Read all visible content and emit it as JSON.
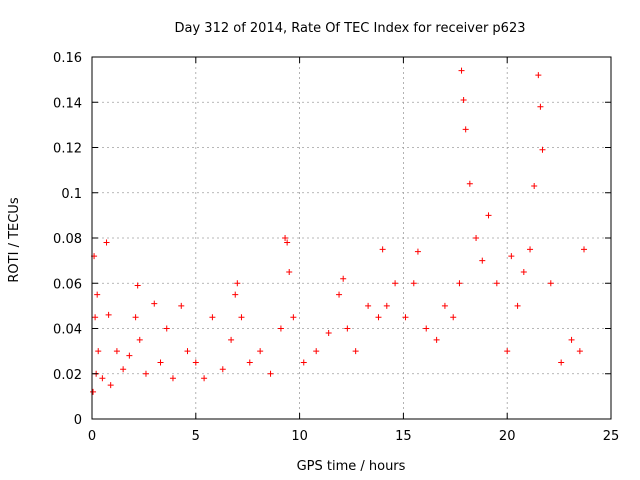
{
  "chart_data": {
    "type": "scatter",
    "title": "Day 312 of 2014, Rate Of TEC Index for receiver p623",
    "xlabel": "GPS time / hours",
    "ylabel": "ROTI / TECUs",
    "xlim": [
      0,
      25
    ],
    "ylim": [
      0,
      0.16
    ],
    "x_ticks": [
      0,
      5,
      10,
      15,
      20,
      25
    ],
    "y_ticks": [
      0,
      0.02,
      0.04,
      0.06,
      0.08,
      0.1,
      0.12,
      0.14,
      0.16
    ],
    "x_tick_labels": [
      "0",
      "5",
      "10",
      "15",
      "20",
      "25"
    ],
    "y_tick_labels": [
      "0",
      "0.02",
      "0.04",
      "0.06",
      "0.08",
      "0.1",
      "0.12",
      "0.14",
      "0.16"
    ],
    "grid": true,
    "marker": "+",
    "color": "#ff0000",
    "series": [
      {
        "name": "ROTI",
        "x": [
          0.05,
          0.1,
          0.15,
          0.2,
          0.25,
          0.3,
          0.5,
          0.7,
          0.8,
          0.9,
          1.2,
          1.5,
          1.8,
          2.1,
          2.2,
          2.3,
          2.6,
          3.0,
          3.3,
          3.6,
          3.9,
          4.3,
          4.6,
          5.0,
          5.4,
          5.8,
          6.3,
          6.7,
          6.9,
          7.0,
          7.2,
          7.6,
          8.1,
          8.6,
          9.1,
          9.3,
          9.4,
          9.5,
          9.7,
          10.2,
          10.8,
          11.4,
          11.9,
          12.1,
          12.3,
          12.7,
          13.3,
          13.8,
          14.0,
          14.2,
          14.6,
          15.1,
          15.5,
          15.7,
          16.1,
          16.6,
          17.0,
          17.4,
          17.7,
          17.8,
          17.9,
          18.0,
          18.2,
          18.5,
          18.8,
          19.1,
          19.5,
          20.0,
          20.2,
          20.5,
          20.8,
          21.1,
          21.3,
          21.5,
          21.6,
          21.7,
          22.1,
          22.6,
          23.1,
          23.5,
          23.7
        ],
        "y": [
          0.012,
          0.072,
          0.045,
          0.02,
          0.055,
          0.03,
          0.018,
          0.078,
          0.046,
          0.015,
          0.03,
          0.022,
          0.028,
          0.045,
          0.059,
          0.035,
          0.02,
          0.051,
          0.025,
          0.04,
          0.018,
          0.05,
          0.03,
          0.025,
          0.018,
          0.045,
          0.022,
          0.035,
          0.055,
          0.06,
          0.045,
          0.025,
          0.03,
          0.02,
          0.04,
          0.08,
          0.078,
          0.065,
          0.045,
          0.025,
          0.03,
          0.038,
          0.055,
          0.062,
          0.04,
          0.03,
          0.05,
          0.045,
          0.075,
          0.05,
          0.06,
          0.045,
          0.06,
          0.074,
          0.04,
          0.035,
          0.05,
          0.045,
          0.06,
          0.154,
          0.141,
          0.128,
          0.104,
          0.08,
          0.07,
          0.09,
          0.06,
          0.03,
          0.072,
          0.05,
          0.065,
          0.075,
          0.103,
          0.152,
          0.138,
          0.119,
          0.06,
          0.025,
          0.035,
          0.03,
          0.075
        ]
      }
    ]
  }
}
